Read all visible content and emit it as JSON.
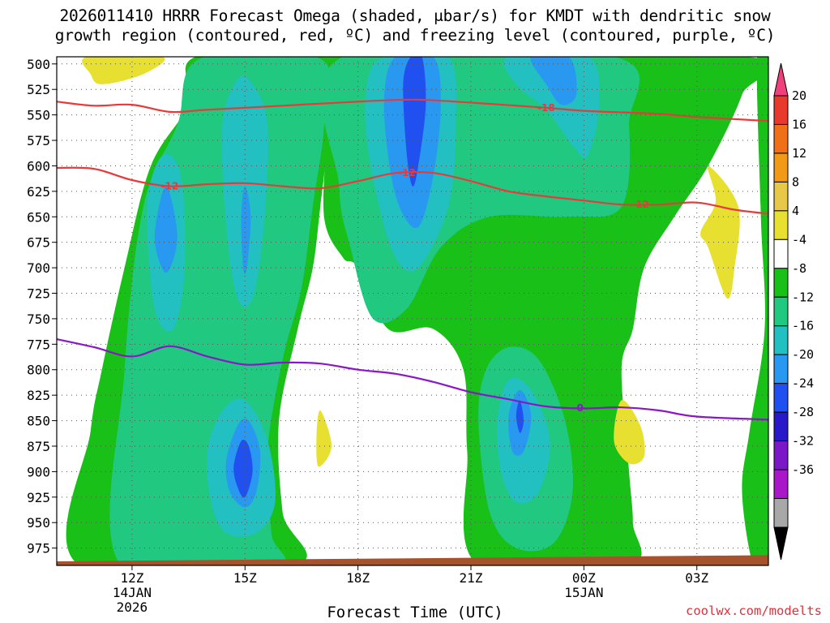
{
  "title": {
    "line1": "2026011410 HRRR Forecast Omega (shaded, μbar/s) for KMDT with dendritic snow",
    "line2": "growth region (contoured, red, ºC) and freezing level (contoured, purple, ºC)"
  },
  "credit": "coolwx.com/modelts",
  "chart_data": {
    "type": "heatmap",
    "title": "2026011410 HRRR Forecast Omega (shaded, μbar/s) for KMDT with dendritic snow growth region (contoured, red, ºC) and freezing level (contoured, purple, ºC)",
    "xlabel": "Forecast Time (UTC)",
    "ylabel": "",
    "x_hours_range": [
      10,
      28.9
    ],
    "x_ticks": [
      {
        "hour": 12,
        "lines": [
          "12Z",
          "14JAN",
          "2026"
        ]
      },
      {
        "hour": 15,
        "lines": [
          "15Z"
        ]
      },
      {
        "hour": 18,
        "lines": [
          "18Z"
        ]
      },
      {
        "hour": 21,
        "lines": [
          "21Z"
        ]
      },
      {
        "hour": 24,
        "lines": [
          "00Z",
          "15JAN"
        ]
      },
      {
        "hour": 27,
        "lines": [
          "03Z"
        ]
      }
    ],
    "y_range_hpa": [
      493,
      992
    ],
    "y_ticks": [
      500,
      525,
      550,
      575,
      600,
      625,
      650,
      675,
      700,
      725,
      750,
      775,
      800,
      825,
      850,
      875,
      900,
      925,
      950,
      975
    ],
    "grid": true,
    "colorbar": {
      "labels": [
        "20",
        "16",
        "12",
        "8",
        "4",
        "-4",
        "-8",
        "-12",
        "-16",
        "-20",
        "-24",
        "-28",
        "-32",
        "-36"
      ],
      "segments": [
        "#f0407c",
        "#e83a2c",
        "#f07018",
        "#f09a18",
        "#e8c848",
        "#e8e030",
        "#ffffff",
        "#18c018",
        "#20c880",
        "#22c0c0",
        "#2898f0",
        "#2050f0",
        "#2818c8",
        "#7a18c8",
        "#a818c8",
        "#a8a8a8",
        "#000000"
      ]
    },
    "omega_regions": [
      {
        "level": "-4 to -8",
        "color": "#18c018",
        "polygon": [
          [
            10.6,
            992
          ],
          [
            10.9,
            860
          ],
          [
            11.2,
            800
          ],
          [
            11.8,
            700
          ],
          [
            12.5,
            600
          ],
          [
            13.5,
            540
          ],
          [
            13.7,
            493
          ],
          [
            17.2,
            493
          ],
          [
            17.3,
            540
          ],
          [
            17.0,
            640
          ],
          [
            16.8,
            700
          ],
          [
            16.4,
            760
          ],
          [
            15.9,
            850
          ],
          [
            16.0,
            940
          ],
          [
            16.3,
            992
          ]
        ]
      },
      {
        "level": "-4 to -8",
        "color": "#18c018",
        "polygon": [
          [
            17.3,
            493
          ],
          [
            28.3,
            493
          ],
          [
            28.2,
            530
          ],
          [
            27.3,
            600
          ],
          [
            26.4,
            650
          ],
          [
            25.6,
            700
          ],
          [
            25.3,
            760
          ],
          [
            25.0,
            800
          ],
          [
            25.2,
            900
          ],
          [
            25.3,
            950
          ],
          [
            25.2,
            992
          ],
          [
            21.2,
            992
          ],
          [
            20.9,
            880
          ],
          [
            20.8,
            800
          ],
          [
            20.0,
            760
          ],
          [
            18.8,
            760
          ],
          [
            18.0,
            700
          ],
          [
            17.6,
            690
          ],
          [
            17.1,
            650
          ],
          [
            17.2,
            560
          ]
        ]
      },
      {
        "level": "-4 to -8",
        "color": "#18c018",
        "polygon": [
          [
            28.6,
            493
          ],
          [
            28.9,
            493
          ],
          [
            28.9,
            992
          ],
          [
            28.5,
            992
          ],
          [
            28.2,
            920
          ],
          [
            28.4,
            860
          ],
          [
            28.8,
            760
          ],
          [
            28.7,
            650
          ]
        ]
      },
      {
        "level": "-8 to -12",
        "color": "#20c880",
        "polygon": [
          [
            11.7,
            992
          ],
          [
            11.8,
            800
          ],
          [
            12.3,
            640
          ],
          [
            13.2,
            560
          ],
          [
            13.8,
            495
          ],
          [
            17.0,
            495
          ],
          [
            17.1,
            560
          ],
          [
            16.8,
            640
          ],
          [
            16.5,
            720
          ],
          [
            16.0,
            790
          ],
          [
            15.6,
            880
          ],
          [
            15.7,
            960
          ],
          [
            15.8,
            992
          ]
        ]
      },
      {
        "level": "-8 to -12",
        "color": "#20c880",
        "polygon": [
          [
            17.6,
            493
          ],
          [
            24.8,
            493
          ],
          [
            25.2,
            560
          ],
          [
            25.0,
            640
          ],
          [
            23.6,
            650
          ],
          [
            21.5,
            650
          ],
          [
            20.2,
            680
          ],
          [
            19.3,
            740
          ],
          [
            18.4,
            750
          ],
          [
            17.8,
            680
          ],
          [
            17.5,
            620
          ]
        ]
      },
      {
        "level": "-8 to -12",
        "color": "#20c880",
        "polygon": [
          [
            21.2,
            850
          ],
          [
            21.4,
            800
          ],
          [
            22.0,
            778
          ],
          [
            22.8,
            790
          ],
          [
            23.5,
            850
          ],
          [
            23.7,
            920
          ],
          [
            23.2,
            970
          ],
          [
            22.2,
            975
          ],
          [
            21.5,
            940
          ]
        ]
      },
      {
        "level": "-12 to -16",
        "color": "#22c0c0",
        "polygon": [
          [
            12.4,
            640
          ],
          [
            12.8,
            590
          ],
          [
            13.3,
            610
          ],
          [
            13.4,
            700
          ],
          [
            13.1,
            760
          ],
          [
            12.6,
            740
          ]
        ]
      },
      {
        "level": "-12 to -16",
        "color": "#22c0c0",
        "polygon": [
          [
            14.4,
            560
          ],
          [
            14.8,
            515
          ],
          [
            15.2,
            520
          ],
          [
            15.6,
            560
          ],
          [
            15.5,
            660
          ],
          [
            15.2,
            730
          ],
          [
            14.8,
            730
          ],
          [
            14.5,
            660
          ]
        ]
      },
      {
        "level": "-12 to -16",
        "color": "#22c0c0",
        "polygon": [
          [
            14.0,
            880
          ],
          [
            14.4,
            840
          ],
          [
            15.0,
            830
          ],
          [
            15.6,
            870
          ],
          [
            15.8,
            930
          ],
          [
            15.3,
            960
          ],
          [
            14.5,
            960
          ],
          [
            14.1,
            930
          ]
        ]
      },
      {
        "level": "-12 to -16",
        "color": "#22c0c0",
        "polygon": [
          [
            18.3,
            510
          ],
          [
            18.8,
            493
          ],
          [
            20.4,
            493
          ],
          [
            20.6,
            560
          ],
          [
            20.4,
            640
          ],
          [
            19.6,
            700
          ],
          [
            19.0,
            690
          ],
          [
            18.5,
            630
          ],
          [
            18.2,
            560
          ]
        ]
      },
      {
        "level": "-12 to -16",
        "color": "#22c0c0",
        "polygon": [
          [
            22.0,
            493
          ],
          [
            24.1,
            493
          ],
          [
            24.4,
            540
          ],
          [
            24.1,
            590
          ],
          [
            23.7,
            580
          ],
          [
            23.0,
            545
          ],
          [
            22.2,
            520
          ]
        ]
      },
      {
        "level": "-12 to -16",
        "color": "#22c0c0",
        "polygon": [
          [
            21.7,
            850
          ],
          [
            22.0,
            810
          ],
          [
            22.6,
            820
          ],
          [
            23.1,
            870
          ],
          [
            22.8,
            920
          ],
          [
            22.2,
            930
          ],
          [
            21.8,
            900
          ]
        ]
      },
      {
        "level": "-16 to -20",
        "color": "#2898f0",
        "polygon": [
          [
            12.6,
            670
          ],
          [
            12.9,
            620
          ],
          [
            13.2,
            670
          ],
          [
            12.9,
            705
          ]
        ]
      },
      {
        "level": "-16 to -20",
        "color": "#2898f0",
        "polygon": [
          [
            14.9,
            650
          ],
          [
            15.0,
            620
          ],
          [
            15.15,
            650
          ],
          [
            15.05,
            700
          ],
          [
            14.95,
            700
          ]
        ]
      },
      {
        "level": "-16 to -20",
        "color": "#2898f0",
        "polygon": [
          [
            14.5,
            890
          ],
          [
            14.8,
            855
          ],
          [
            15.1,
            850
          ],
          [
            15.4,
            880
          ],
          [
            15.3,
            920
          ],
          [
            15.0,
            935
          ],
          [
            14.6,
            920
          ]
        ]
      },
      {
        "level": "-16 to -20",
        "color": "#2898f0",
        "polygon": [
          [
            18.7,
            530
          ],
          [
            19.0,
            493
          ],
          [
            20.0,
            493
          ],
          [
            20.2,
            540
          ],
          [
            20.0,
            610
          ],
          [
            19.6,
            660
          ],
          [
            19.1,
            640
          ],
          [
            18.8,
            590
          ]
        ]
      },
      {
        "level": "-16 to -20",
        "color": "#2898f0",
        "polygon": [
          [
            22.6,
            493
          ],
          [
            23.6,
            493
          ],
          [
            23.8,
            530
          ],
          [
            23.4,
            540
          ],
          [
            23.0,
            520
          ]
        ]
      },
      {
        "level": "-16 to -20",
        "color": "#2898f0",
        "polygon": [
          [
            22.0,
            845
          ],
          [
            22.3,
            820
          ],
          [
            22.6,
            845
          ],
          [
            22.4,
            880
          ],
          [
            22.1,
            880
          ]
        ]
      },
      {
        "level": "-20 to -24",
        "color": "#2050f0",
        "polygon": [
          [
            14.7,
            895
          ],
          [
            14.9,
            870
          ],
          [
            15.1,
            875
          ],
          [
            15.2,
            900
          ],
          [
            15.0,
            925
          ],
          [
            14.8,
            915
          ]
        ]
      },
      {
        "level": "-20 to -24",
        "color": "#2050f0",
        "polygon": [
          [
            19.2,
            520
          ],
          [
            19.4,
            493
          ],
          [
            19.7,
            493
          ],
          [
            19.8,
            540
          ],
          [
            19.6,
            600
          ],
          [
            19.45,
            620
          ],
          [
            19.3,
            590
          ]
        ]
      },
      {
        "level": "-20 to -24",
        "color": "#2050f0",
        "polygon": [
          [
            22.2,
            845
          ],
          [
            22.3,
            830
          ],
          [
            22.4,
            850
          ],
          [
            22.3,
            862
          ]
        ]
      },
      {
        "level": "4 to 8",
        "color": "#e8e030",
        "polygon": [
          [
            10.8,
            493
          ],
          [
            12.8,
            493
          ],
          [
            12.3,
            510
          ],
          [
            11.2,
            520
          ],
          [
            10.9,
            510
          ]
        ]
      },
      {
        "level": "4 to 8",
        "color": "#e8e030",
        "polygon": [
          [
            27.1,
            665
          ],
          [
            27.5,
            635
          ],
          [
            27.3,
            600
          ],
          [
            28.1,
            640
          ],
          [
            28.0,
            700
          ],
          [
            27.8,
            730
          ],
          [
            27.3,
            680
          ]
        ]
      },
      {
        "level": "4 to 8",
        "color": "#e8e030",
        "polygon": [
          [
            16.9,
            865
          ],
          [
            17.0,
            840
          ],
          [
            17.3,
            875
          ],
          [
            16.95,
            895
          ]
        ]
      },
      {
        "level": "4 to 8",
        "color": "#e8e030",
        "polygon": [
          [
            24.8,
            870
          ],
          [
            25.0,
            830
          ],
          [
            25.5,
            855
          ],
          [
            25.6,
            885
          ],
          [
            25.2,
            892
          ]
        ]
      }
    ],
    "red_contours": [
      {
        "label": "-18",
        "label_at": 23.0,
        "points": [
          [
            10,
            537
          ],
          [
            11,
            541
          ],
          [
            12,
            540
          ],
          [
            13,
            547
          ],
          [
            14,
            545
          ],
          [
            16,
            541
          ],
          [
            18,
            537
          ],
          [
            19.5,
            535
          ],
          [
            21,
            538
          ],
          [
            23,
            543
          ],
          [
            24,
            546
          ],
          [
            26,
            549
          ],
          [
            27,
            552
          ],
          [
            28.9,
            556
          ]
        ]
      },
      {
        "label": "-12",
        "label_at": 19.3,
        "label2": "-12",
        "label2_at": 13.0,
        "label3": "-12",
        "label3_at": 25.5,
        "points": [
          [
            10,
            602
          ],
          [
            11,
            603
          ],
          [
            12,
            614
          ],
          [
            13,
            620
          ],
          [
            14,
            618
          ],
          [
            15,
            617
          ],
          [
            16,
            620
          ],
          [
            17,
            622
          ],
          [
            18,
            615
          ],
          [
            19,
            607
          ],
          [
            20,
            607
          ],
          [
            21,
            615
          ],
          [
            22,
            625
          ],
          [
            23,
            630
          ],
          [
            24,
            634
          ],
          [
            25,
            638
          ],
          [
            26,
            638
          ],
          [
            27,
            636
          ],
          [
            28,
            643
          ],
          [
            28.9,
            647
          ]
        ]
      }
    ],
    "purple_contours": [
      {
        "label": "0",
        "label_at": 23.9,
        "points": [
          [
            10,
            770
          ],
          [
            11,
            778
          ],
          [
            12,
            787
          ],
          [
            13,
            777
          ],
          [
            14,
            787
          ],
          [
            15,
            795
          ],
          [
            16,
            793
          ],
          [
            17,
            794
          ],
          [
            18,
            800
          ],
          [
            19,
            804
          ],
          [
            20,
            812
          ],
          [
            21,
            822
          ],
          [
            22,
            829
          ],
          [
            23,
            836
          ],
          [
            24,
            838
          ],
          [
            25,
            837
          ],
          [
            26,
            840
          ],
          [
            27,
            846
          ],
          [
            28.9,
            849
          ]
        ]
      }
    ],
    "ground": {
      "label": "terrain",
      "color": "#a6522a",
      "top_left_hpa": 988,
      "top_right_hpa": 982
    }
  },
  "colors": {
    "red_contour": "#e83a3a",
    "purple_contour": "#8a16c8",
    "grid": "#555555",
    "terrain": "#a6522a"
  }
}
